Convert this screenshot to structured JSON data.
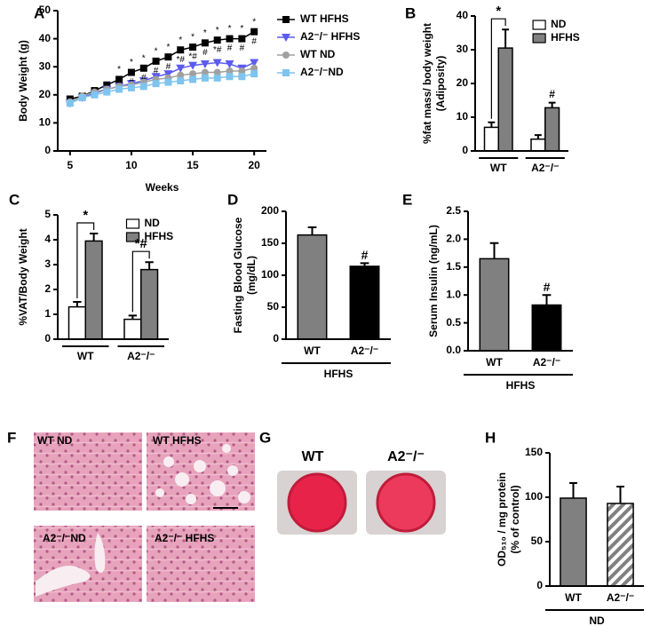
{
  "chart_data": [
    {
      "type": "line",
      "panel": "A",
      "xlabel": "Weeks",
      "ylabel": [
        "Body Weight (g)"
      ],
      "x": [
        5,
        6,
        7,
        8,
        9,
        10,
        11,
        12,
        13,
        14,
        15,
        16,
        17,
        18,
        19,
        20
      ],
      "xlim": [
        4,
        21
      ],
      "xticks": [
        5,
        10,
        15,
        20
      ],
      "ylim": [
        0,
        50
      ],
      "yticks": [
        0,
        10,
        20,
        30,
        40,
        50
      ],
      "legend": "right",
      "series": [
        {
          "name": "WT HFHS",
          "color": "#000000",
          "marker": "square",
          "values": [
            18.5,
            19.5,
            21.5,
            23.5,
            25.5,
            28,
            29.5,
            32,
            33.5,
            36,
            37,
            38.5,
            39.5,
            40,
            40,
            42.5
          ],
          "sig": [
            null,
            null,
            null,
            null,
            "*",
            "*",
            "*",
            "*",
            "*",
            "*",
            "*",
            "*",
            "*",
            "*",
            "*",
            "*"
          ]
        },
        {
          "name": "A2⁻/⁻ HFHS",
          "color": "#5b5bef",
          "marker": "triangle",
          "values": [
            17,
            19,
            20.5,
            22,
            23,
            24,
            25,
            26.5,
            27.5,
            29.5,
            30.5,
            31,
            31.5,
            31,
            29.5,
            31.5
          ],
          "sig": [
            null,
            null,
            null,
            null,
            "#",
            "#",
            "#",
            "#",
            "#",
            "*#",
            "*#",
            "#",
            "*#",
            "#",
            "#",
            "#"
          ]
        },
        {
          "name": "WT ND",
          "color": "#a0a0a0",
          "marker": "circle",
          "values": [
            17.5,
            19.5,
            21,
            22,
            23,
            23.5,
            24.5,
            25.5,
            26,
            27,
            27.5,
            28,
            28,
            28.5,
            28.5,
            29.5
          ]
        },
        {
          "name": "A2⁻/⁻ND",
          "color": "#7fc4ee",
          "marker": "square",
          "values": [
            17,
            19,
            20,
            21,
            22,
            22.5,
            23,
            24,
            24.5,
            25,
            25.5,
            26,
            26,
            26.5,
            26.5,
            27.5
          ]
        }
      ]
    },
    {
      "type": "bar",
      "panel": "B",
      "ylabel": [
        "%fat mass/ body weight",
        "(Adiposity)"
      ],
      "categories": [
        "WT",
        "A2⁻/⁻"
      ],
      "ylim": [
        0,
        40
      ],
      "yticks": [
        0,
        10,
        20,
        30,
        40
      ],
      "legend": "upper right",
      "series": [
        {
          "name": "ND",
          "color": "#ffffff",
          "values": [
            7,
            3.5
          ],
          "errors": [
            1.5,
            1.2
          ]
        },
        {
          "name": "HFHS",
          "color": "#808080",
          "values": [
            30.5,
            12.8
          ],
          "errors": [
            5.5,
            1.5
          ],
          "sig": [
            null,
            "#"
          ]
        }
      ],
      "brackets": [
        {
          "category": 0,
          "text": "*"
        }
      ]
    },
    {
      "type": "bar",
      "panel": "C",
      "ylabel": [
        "%VAT/Body Weight"
      ],
      "categories": [
        "WT",
        "A2⁻/⁻"
      ],
      "ylim": [
        0,
        5
      ],
      "yticks": [
        0,
        1,
        2,
        3,
        4,
        5
      ],
      "legend": "upper right",
      "series": [
        {
          "name": "ND",
          "color": "#ffffff",
          "values": [
            1.3,
            0.8
          ],
          "errors": [
            0.2,
            0.15
          ]
        },
        {
          "name": "HFHS",
          "color": "#808080",
          "values": [
            3.95,
            2.8
          ],
          "errors": [
            0.3,
            0.3
          ]
        }
      ],
      "brackets": [
        {
          "category": 0,
          "text": "*"
        },
        {
          "category": 1,
          "text": "*#"
        }
      ]
    },
    {
      "type": "bar",
      "panel": "D",
      "ylabel": [
        "Fasting Blood Glucose",
        "(mg/dL)"
      ],
      "group_label": "HFHS",
      "categories": [
        "WT",
        "A2⁻/⁻"
      ],
      "values": [
        163,
        114
      ],
      "errors": [
        12,
        5
      ],
      "colors": [
        "#808080",
        "#000000"
      ],
      "sig": [
        null,
        "#"
      ],
      "ylim": [
        0,
        200
      ],
      "yticks": [
        0,
        50,
        100,
        150,
        200
      ]
    },
    {
      "type": "bar",
      "panel": "E",
      "ylabel": [
        "Serum Insulin (ng/mL)"
      ],
      "group_label": "HFHS",
      "categories": [
        "WT",
        "A2⁻/⁻"
      ],
      "values": [
        1.65,
        0.82
      ],
      "errors": [
        0.28,
        0.18
      ],
      "colors": [
        "#808080",
        "#000000"
      ],
      "sig": [
        null,
        "#"
      ],
      "ylim": [
        0,
        2.5
      ],
      "yticks": [
        {
          "value": 0,
          "label": "0.0"
        },
        0.5,
        {
          "value": 1,
          "label": "1.0"
        },
        1.5,
        {
          "value": 2,
          "label": "2.0"
        },
        2.5
      ]
    },
    {
      "type": "bar",
      "panel": "H",
      "ylabel": [
        "OD₅₁₀ / mg protein",
        "(% of control)"
      ],
      "group_label": "ND",
      "categories": [
        "WT",
        "A2⁻/⁻"
      ],
      "values": [
        99,
        93
      ],
      "errors": [
        17,
        19
      ],
      "colors": [
        "#808080",
        "#808080"
      ],
      "hatch": [
        false,
        true
      ],
      "ylim": [
        0,
        150
      ],
      "yticks": [
        0,
        50,
        100,
        150
      ]
    }
  ],
  "image_panels": [
    {
      "panel": "F",
      "labels": [
        "WT ND",
        "WT HFHS",
        "A2⁻/⁻ND",
        "A2⁻/⁻ HFHS"
      ]
    },
    {
      "panel": "G",
      "labels": [
        "WT",
        "A2⁻/⁻"
      ]
    }
  ]
}
